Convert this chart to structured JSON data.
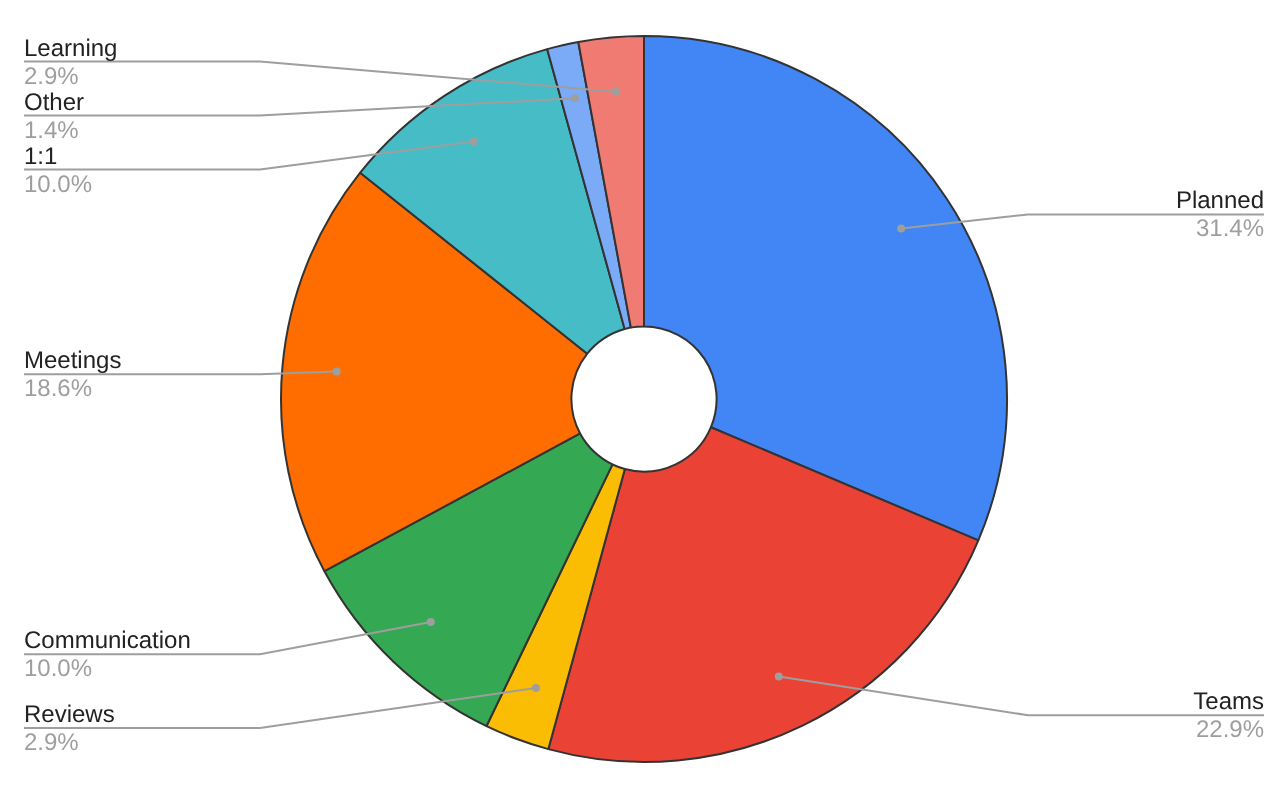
{
  "chart_data": {
    "type": "donut",
    "categories": [
      "Planned",
      "Teams",
      "Reviews",
      "Communication",
      "Meetings",
      "1:1",
      "Other",
      "Learning"
    ],
    "values": [
      31.4,
      22.9,
      2.9,
      10.0,
      18.6,
      10.0,
      1.4,
      2.9
    ],
    "value_labels": [
      "31.4%",
      "22.9%",
      "2.9%",
      "10.0%",
      "18.6%",
      "10.0%",
      "1.4%",
      "2.9%"
    ],
    "colors": [
      "#4285f4",
      "#ea4335",
      "#fbbc04",
      "#34a853",
      "#ff6d01",
      "#46bdc6",
      "#7baaf7",
      "#f07b72"
    ],
    "legend": false
  }
}
